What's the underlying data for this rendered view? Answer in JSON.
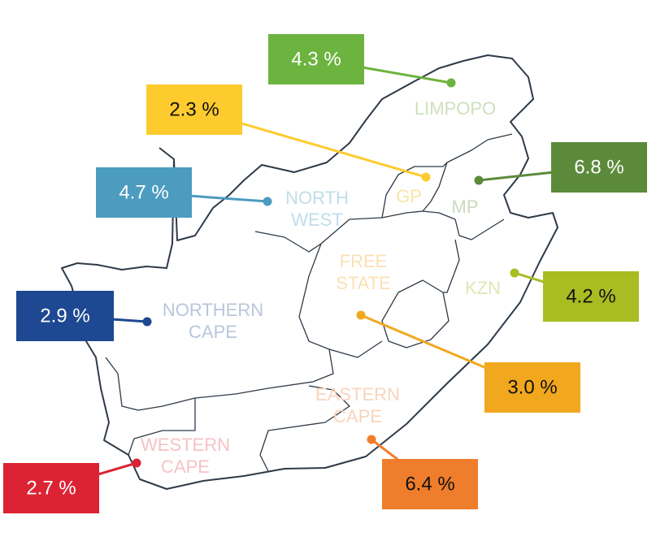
{
  "regions": [
    {
      "name": [
        "LIMPOPO"
      ],
      "value_label": "4.3 %"
    },
    {
      "name": [
        "GP"
      ],
      "value_label": "2.3 %"
    },
    {
      "name": [
        "MP"
      ],
      "value_label": "6.8 %"
    },
    {
      "name": [
        "NORTH",
        "WEST"
      ],
      "value_label": "4.7 %"
    },
    {
      "name": [
        "KZN"
      ],
      "value_label": "4.2 %"
    },
    {
      "name": [
        "NORTHERN",
        "CAPE"
      ],
      "value_label": "2.9 %"
    },
    {
      "name": [
        "FREE",
        "STATE"
      ],
      "value_label": "3.0 %"
    },
    {
      "name": [
        "EASTERN",
        "CAPE"
      ],
      "value_label": "6.4 %"
    },
    {
      "name": [
        "WESTERN",
        "CAPE"
      ],
      "value_label": "2.7 %"
    }
  ]
}
